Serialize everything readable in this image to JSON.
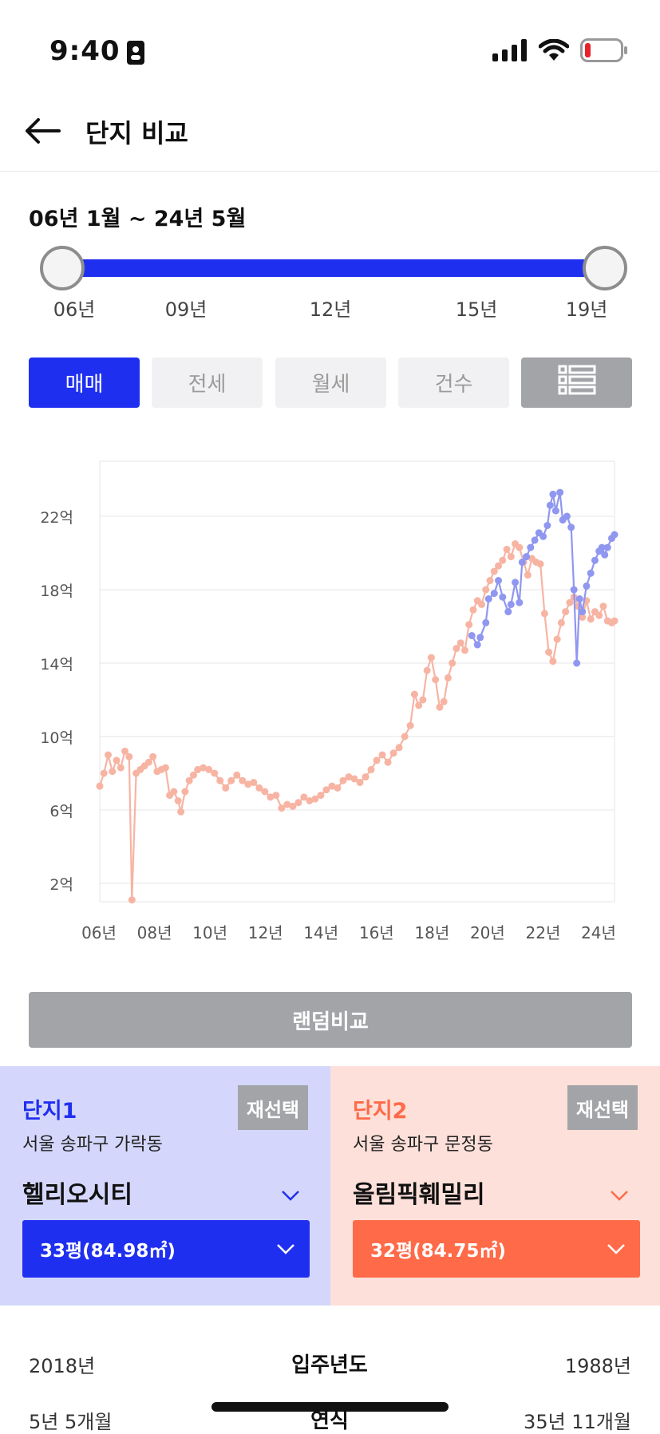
{
  "status_bar": {
    "time": "9:40"
  },
  "header": {
    "title": "단지 비교"
  },
  "range": {
    "label": "06년 1월 ~ 24년 5월",
    "ticks": [
      "06년",
      "09년",
      "12년",
      "15년",
      "19년"
    ]
  },
  "tabs": [
    {
      "label": "매매",
      "active": true
    },
    {
      "label": "전세",
      "active": false
    },
    {
      "label": "월세",
      "active": false
    },
    {
      "label": "건수",
      "active": false
    }
  ],
  "chart_data": {
    "type": "line",
    "title": "",
    "xlabel": "",
    "ylabel": "",
    "x_tick_labels": [
      "06년",
      "08년",
      "10년",
      "12년",
      "14년",
      "16년",
      "18년",
      "20년",
      "22년",
      "24년"
    ],
    "y_tick_labels": [
      "2억",
      "6억",
      "10억",
      "14억",
      "18억",
      "22억"
    ],
    "y_ticks": [
      2,
      6,
      10,
      14,
      18,
      22
    ],
    "xlim": [
      2006.0,
      2024.4
    ],
    "ylim": [
      1,
      25
    ],
    "grid": true,
    "colors": {
      "series1": "#8f97f0",
      "series2": "#f7b4a3"
    },
    "series": [
      {
        "points": [
          [
            2019.3,
            15.5
          ],
          [
            2019.5,
            15.0
          ],
          [
            2019.6,
            15.4
          ],
          [
            2019.8,
            16.2
          ],
          [
            2019.9,
            17.5
          ],
          [
            2020.1,
            17.8
          ],
          [
            2020.25,
            18.5
          ],
          [
            2020.4,
            17.6
          ],
          [
            2020.6,
            16.8
          ],
          [
            2020.7,
            17.2
          ],
          [
            2020.85,
            18.4
          ],
          [
            2021.0,
            17.3
          ],
          [
            2021.1,
            19.5
          ],
          [
            2021.25,
            19.8
          ],
          [
            2021.4,
            20.3
          ],
          [
            2021.55,
            20.7
          ],
          [
            2021.7,
            21.1
          ],
          [
            2021.85,
            20.9
          ],
          [
            2022.0,
            21.5
          ],
          [
            2022.1,
            22.6
          ],
          [
            2022.2,
            23.2
          ],
          [
            2022.3,
            22.3
          ],
          [
            2022.45,
            23.3
          ],
          [
            2022.55,
            21.8
          ],
          [
            2022.7,
            22.0
          ],
          [
            2022.85,
            21.4
          ],
          [
            2022.95,
            18.0
          ],
          [
            2023.05,
            14.0
          ],
          [
            2023.15,
            17.5
          ],
          [
            2023.25,
            16.8
          ],
          [
            2023.4,
            18.2
          ],
          [
            2023.55,
            18.9
          ],
          [
            2023.7,
            19.6
          ],
          [
            2023.85,
            20.1
          ],
          [
            2023.95,
            20.3
          ],
          [
            2024.05,
            19.9
          ],
          [
            2024.15,
            20.3
          ],
          [
            2024.3,
            20.8
          ],
          [
            2024.4,
            21.0
          ]
        ]
      },
      {
        "points": [
          [
            2006.0,
            7.3
          ],
          [
            2006.15,
            8.0
          ],
          [
            2006.3,
            9.0
          ],
          [
            2006.45,
            8.1
          ],
          [
            2006.6,
            8.7
          ],
          [
            2006.75,
            8.3
          ],
          [
            2006.9,
            9.2
          ],
          [
            2007.05,
            8.9
          ],
          [
            2007.15,
            1.1
          ],
          [
            2007.3,
            8.0
          ],
          [
            2007.45,
            8.2
          ],
          [
            2007.6,
            8.4
          ],
          [
            2007.75,
            8.6
          ],
          [
            2007.9,
            8.9
          ],
          [
            2008.05,
            8.1
          ],
          [
            2008.2,
            8.2
          ],
          [
            2008.35,
            8.3
          ],
          [
            2008.5,
            6.8
          ],
          [
            2008.65,
            7.0
          ],
          [
            2008.8,
            6.5
          ],
          [
            2008.9,
            5.9
          ],
          [
            2009.05,
            7.0
          ],
          [
            2009.2,
            7.6
          ],
          [
            2009.35,
            7.9
          ],
          [
            2009.5,
            8.2
          ],
          [
            2009.7,
            8.3
          ],
          [
            2009.9,
            8.2
          ],
          [
            2010.1,
            8.0
          ],
          [
            2010.3,
            7.6
          ],
          [
            2010.5,
            7.2
          ],
          [
            2010.7,
            7.6
          ],
          [
            2010.9,
            7.9
          ],
          [
            2011.1,
            7.6
          ],
          [
            2011.3,
            7.4
          ],
          [
            2011.5,
            7.5
          ],
          [
            2011.7,
            7.2
          ],
          [
            2011.9,
            7.0
          ],
          [
            2012.1,
            6.7
          ],
          [
            2012.3,
            6.8
          ],
          [
            2012.5,
            6.1
          ],
          [
            2012.7,
            6.3
          ],
          [
            2012.9,
            6.2
          ],
          [
            2013.1,
            6.4
          ],
          [
            2013.3,
            6.7
          ],
          [
            2013.5,
            6.5
          ],
          [
            2013.7,
            6.6
          ],
          [
            2013.9,
            6.8
          ],
          [
            2014.1,
            7.1
          ],
          [
            2014.3,
            7.3
          ],
          [
            2014.5,
            7.2
          ],
          [
            2014.7,
            7.6
          ],
          [
            2014.9,
            7.8
          ],
          [
            2015.1,
            7.7
          ],
          [
            2015.3,
            7.5
          ],
          [
            2015.5,
            7.8
          ],
          [
            2015.7,
            8.2
          ],
          [
            2015.9,
            8.7
          ],
          [
            2016.1,
            9.0
          ],
          [
            2016.3,
            8.6
          ],
          [
            2016.5,
            9.1
          ],
          [
            2016.7,
            9.4
          ],
          [
            2016.9,
            10.0
          ],
          [
            2017.1,
            10.6
          ],
          [
            2017.25,
            12.3
          ],
          [
            2017.4,
            11.7
          ],
          [
            2017.55,
            12.0
          ],
          [
            2017.7,
            13.6
          ],
          [
            2017.85,
            14.3
          ],
          [
            2018.0,
            13.1
          ],
          [
            2018.15,
            11.6
          ],
          [
            2018.3,
            11.9
          ],
          [
            2018.45,
            13.2
          ],
          [
            2018.6,
            14.0
          ],
          [
            2018.75,
            14.8
          ],
          [
            2018.9,
            15.1
          ],
          [
            2019.05,
            14.7
          ],
          [
            2019.2,
            16.1
          ],
          [
            2019.35,
            16.9
          ],
          [
            2019.5,
            17.4
          ],
          [
            2019.65,
            17.2
          ],
          [
            2019.8,
            18.0
          ],
          [
            2019.95,
            18.5
          ],
          [
            2020.1,
            19.0
          ],
          [
            2020.25,
            19.3
          ],
          [
            2020.4,
            19.6
          ],
          [
            2020.55,
            20.2
          ],
          [
            2020.7,
            19.8
          ],
          [
            2020.85,
            20.5
          ],
          [
            2021.0,
            20.3
          ],
          [
            2021.15,
            19.5
          ],
          [
            2021.3,
            18.8
          ],
          [
            2021.45,
            19.7
          ],
          [
            2021.6,
            19.5
          ],
          [
            2021.75,
            19.4
          ],
          [
            2021.9,
            16.7
          ],
          [
            2022.05,
            14.6
          ],
          [
            2022.2,
            14.1
          ],
          [
            2022.35,
            15.3
          ],
          [
            2022.5,
            16.2
          ],
          [
            2022.65,
            16.8
          ],
          [
            2022.8,
            17.3
          ],
          [
            2022.95,
            17.6
          ],
          [
            2023.1,
            17.1
          ],
          [
            2023.25,
            16.5
          ],
          [
            2023.4,
            17.4
          ],
          [
            2023.55,
            16.4
          ],
          [
            2023.7,
            16.8
          ],
          [
            2023.85,
            16.6
          ],
          [
            2024.0,
            17.1
          ],
          [
            2024.15,
            16.3
          ],
          [
            2024.3,
            16.2
          ],
          [
            2024.4,
            16.3
          ]
        ]
      }
    ]
  },
  "random_button": {
    "label": "랜덤비교"
  },
  "complex1": {
    "title": "단지1",
    "address": "서울 송파구 가락동",
    "name": "헬리오시티",
    "size": "33평(84.98㎡)",
    "reselect": "재선택",
    "accent": "#1f2ff0"
  },
  "complex2": {
    "title": "단지2",
    "address": "서울 송파구 문정동",
    "name": "올림픽훼밀리",
    "size": "32평(84.75㎡)",
    "reselect": "재선택",
    "accent": "#ff6a48"
  },
  "info_rows": [
    {
      "left": "2018년",
      "label": "입주년도",
      "right": "1988년"
    },
    {
      "left": "5년 5개월",
      "label": "연식",
      "right": "35년 11개월"
    }
  ]
}
